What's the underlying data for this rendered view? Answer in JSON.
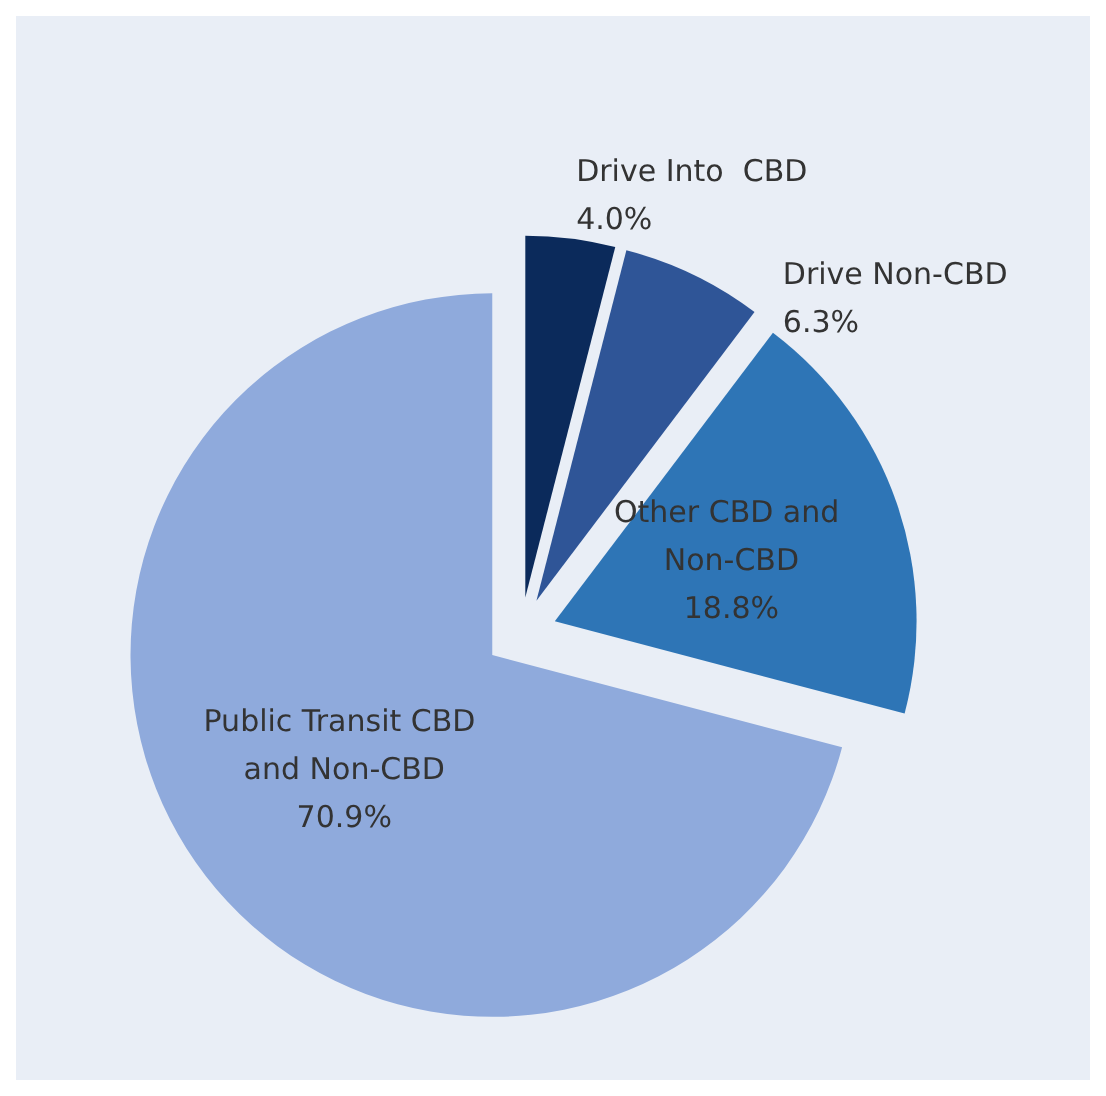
{
  "chart_data": {
    "type": "pie",
    "categories": [
      "Drive Into  CBD",
      "Drive Non-CBD",
      "Other CBD and Non-CBD",
      "Public Transit CBD and Non-CBD"
    ],
    "values": [
      4.0,
      6.3,
      18.8,
      70.9
    ],
    "value_labels": [
      "4.0%",
      "6.3%",
      "18.8%",
      "70.9%"
    ],
    "colors": [
      "#0b2a5b",
      "#2f5597",
      "#2e75b6",
      "#8faadc"
    ]
  }
}
